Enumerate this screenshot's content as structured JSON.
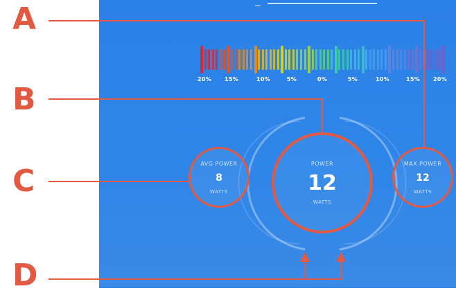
{
  "callouts": {
    "a": "A",
    "b": "B",
    "c": "C",
    "d": "D"
  },
  "scale": {
    "labels": [
      "20%",
      "15%",
      "10%",
      "5%",
      "0%",
      "5%",
      "10%",
      "15%",
      "20%"
    ],
    "colors": [
      "#e0262b",
      "#e65420",
      "#e88a1a",
      "#e6b81e",
      "#cfd22a",
      "#9fd23a",
      "#5bd07a",
      "#3fc9b0",
      "#3fb9d6",
      "#4a9be6",
      "#5a86e0",
      "#6a72d4",
      "#7a5cc6"
    ]
  },
  "avg": {
    "label": "AVG POWER",
    "value": "8",
    "unit": "WATTS"
  },
  "power": {
    "label": "POWER",
    "value": "12",
    "unit": "WATTS"
  },
  "max": {
    "label": "MAX POWER",
    "value": "12",
    "unit": "WATTS"
  }
}
